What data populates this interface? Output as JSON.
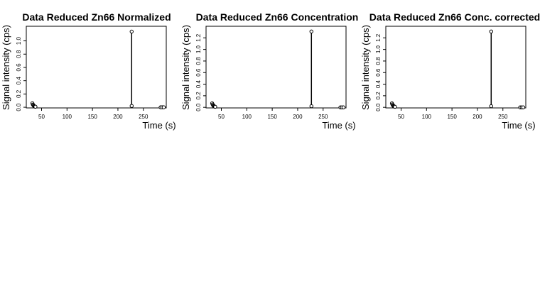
{
  "chart_data": [
    {
      "type": "scatter",
      "title": "Data Reduced Zn66 Normalized",
      "xlabel": "Time (s)",
      "ylabel": "Signal intensity (cps)",
      "x_ticks": [
        "50",
        "100",
        "150",
        "200",
        "250"
      ],
      "y_ticks": [
        "0.0",
        "0.2",
        "0.4",
        "0.6",
        "0.8",
        "1.0"
      ],
      "xlim": [
        20,
        295
      ],
      "ylim": [
        -0.01,
        1.22
      ],
      "grid": false,
      "series": [
        {
          "points": [
            [
              32,
              0.06
            ],
            [
              33,
              0.04
            ],
            [
              34,
              0.03
            ],
            [
              35,
              0.02
            ],
            [
              36,
              0.015
            ],
            [
              37,
              0.01
            ],
            [
              38,
              0.008
            ],
            [
              227,
              1.14
            ],
            [
              227,
              0.02
            ],
            [
              284,
              0.0
            ],
            [
              287,
              0.0
            ],
            [
              290,
              0.0
            ]
          ]
        }
      ],
      "segments": [
        [
          [
            227,
            0.02
          ],
          [
            227,
            1.14
          ]
        ]
      ]
    },
    {
      "type": "scatter",
      "title": "Data Reduced Zn66 Concentration",
      "xlabel": "Time (s)",
      "ylabel": "Signal intensity (cps)",
      "x_ticks": [
        "50",
        "100",
        "150",
        "200",
        "250"
      ],
      "y_ticks": [
        "0.0",
        "0.2",
        "0.4",
        "0.6",
        "0.8",
        "1.0",
        "1.2"
      ],
      "xlim": [
        20,
        295
      ],
      "ylim": [
        -0.01,
        1.4
      ],
      "grid": false,
      "series": [
        {
          "points": [
            [
              32,
              0.07
            ],
            [
              33,
              0.05
            ],
            [
              34,
              0.035
            ],
            [
              35,
              0.025
            ],
            [
              36,
              0.018
            ],
            [
              37,
              0.012
            ],
            [
              38,
              0.009
            ],
            [
              227,
              1.31
            ],
            [
              227,
              0.02
            ],
            [
              284,
              0.0
            ],
            [
              287,
              0.0
            ],
            [
              290,
              0.0
            ]
          ]
        }
      ],
      "segments": [
        [
          [
            227,
            0.02
          ],
          [
            227,
            1.31
          ]
        ]
      ]
    },
    {
      "type": "scatter",
      "title": "Data Reduced Zn66 Conc. corrected",
      "xlabel": "Time (s)",
      "ylabel": "Signal intensity (cps)",
      "x_ticks": [
        "50",
        "100",
        "150",
        "200",
        "250"
      ],
      "y_ticks": [
        "0.0",
        "0.2",
        "0.4",
        "0.6",
        "0.8",
        "1.0",
        "1.2"
      ],
      "xlim": [
        20,
        295
      ],
      "ylim": [
        -0.01,
        1.4
      ],
      "grid": false,
      "series": [
        {
          "points": [
            [
              32,
              0.07
            ],
            [
              33,
              0.05
            ],
            [
              34,
              0.035
            ],
            [
              35,
              0.025
            ],
            [
              36,
              0.018
            ],
            [
              37,
              0.012
            ],
            [
              38,
              0.009
            ],
            [
              227,
              1.31
            ],
            [
              227,
              0.02
            ],
            [
              284,
              0.0
            ],
            [
              287,
              0.0
            ],
            [
              290,
              0.0
            ]
          ]
        }
      ],
      "segments": [
        [
          [
            227,
            0.02
          ],
          [
            227,
            1.31
          ]
        ]
      ]
    }
  ]
}
